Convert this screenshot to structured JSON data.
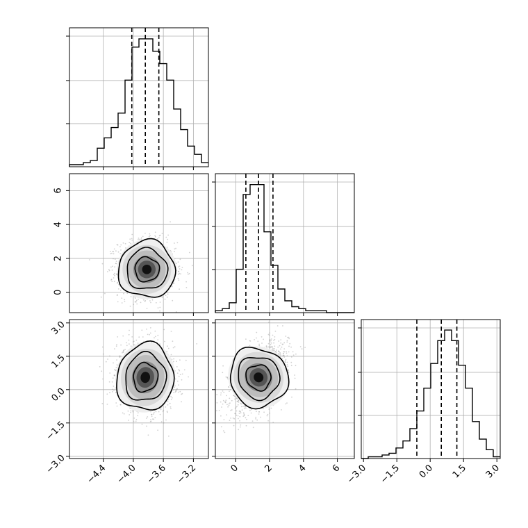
{
  "chart_data": {
    "type": "corner",
    "title": "",
    "parameters": [
      {
        "label": "",
        "range": [
          -4.85,
          -3.0
        ]
      },
      {
        "label": "",
        "range": [
          -1.2,
          7.0
        ]
      },
      {
        "label": "",
        "range": [
          -3.1,
          3.15
        ]
      }
    ],
    "ticks": {
      "p0": [
        {
          "v": -4.4,
          "t": "−4.4"
        },
        {
          "v": -4.0,
          "t": "−4.0"
        },
        {
          "v": -3.6,
          "t": "−3.6"
        },
        {
          "v": -3.2,
          "t": "−3.2"
        }
      ],
      "p1": [
        {
          "v": 0,
          "t": "0"
        },
        {
          "v": 2,
          "t": "2"
        },
        {
          "v": 4,
          "t": "4"
        },
        {
          "v": 6,
          "t": "6"
        }
      ],
      "p2": [
        {
          "v": -3.0,
          "t": "−3.0"
        },
        {
          "v": -1.5,
          "t": "−1.5"
        },
        {
          "v": 0.0,
          "t": "0.0"
        },
        {
          "v": 1.5,
          "t": "1.5"
        },
        {
          "v": 3.0,
          "t": "3.0"
        }
      ]
    },
    "histograms": [
      {
        "param": 0,
        "edges_start": -4.85,
        "bin_width": 0.0925,
        "counts": [
          1,
          1,
          2,
          3,
          9,
          14,
          19,
          26,
          42,
          58,
          62,
          62,
          56,
          50,
          42,
          28,
          18,
          10,
          6,
          2
        ],
        "ymax": 64,
        "quantiles": [
          -4.02,
          -3.84,
          -3.66
        ]
      },
      {
        "param": 1,
        "edges_start": -1.2,
        "bin_width": 0.41,
        "counts": [
          1,
          2,
          5,
          22,
          60,
          65,
          65,
          41,
          24,
          12,
          6,
          3,
          2,
          1,
          1,
          1,
          0,
          0,
          0,
          0
        ],
        "ymax": 67,
        "quantiles": [
          0.6,
          1.35,
          2.2
        ]
      },
      {
        "param": 2,
        "edges_start": -3.1,
        "bin_width": 0.3125,
        "counts": [
          0,
          1,
          1,
          2,
          3,
          6,
          10,
          17,
          27,
          40,
          54,
          67,
          73,
          67,
          53,
          40,
          21,
          11,
          5,
          1
        ],
        "ymax": 75,
        "quantiles": [
          -0.6,
          0.5,
          1.2
        ]
      }
    ],
    "joint_2d": [
      {
        "x": 0,
        "y": 1,
        "center": [
          -3.82,
          1.35
        ],
        "sd": [
          0.18,
          0.8
        ],
        "rho": -0.05
      },
      {
        "x": 0,
        "y": 2,
        "center": [
          -3.84,
          0.55
        ],
        "sd": [
          0.18,
          0.72
        ],
        "rho": -0.05
      },
      {
        "x": 1,
        "y": 2,
        "center": [
          1.35,
          0.55
        ],
        "sd": [
          0.8,
          0.72
        ],
        "rho": 0.45
      }
    ],
    "contour_levels": 3,
    "grid": true
  }
}
